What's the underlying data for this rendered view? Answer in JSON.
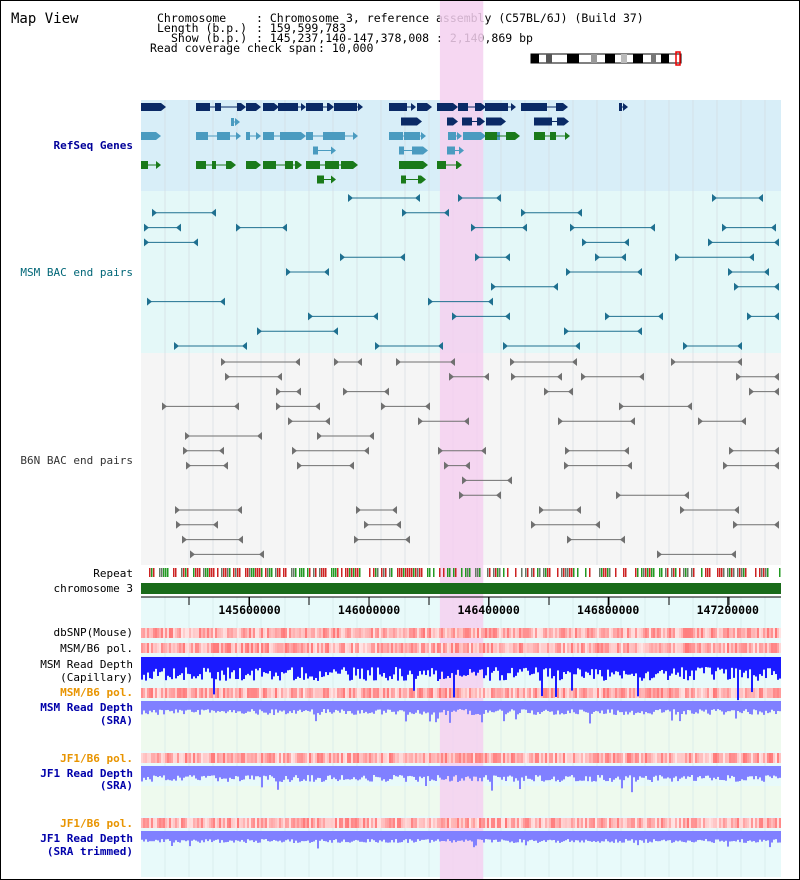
{
  "page": {
    "title": "Map View"
  },
  "header": {
    "chromosome_label": "Chromosome",
    "chromosome_value": ": Chromosome 3, reference assembly (C57BL/6J) (Build 37)",
    "length_label": "Length (b.p.)",
    "length_value": ": 159,599,783",
    "show_label": "Show (b.p.)",
    "show_value": ": 145,237,140-147,378,008 : 2,140,869 bp",
    "coverage_label": "Read coverage check span",
    "coverage_value": ": 10,000"
  },
  "tracks": {
    "refseq": "RefSeq Genes",
    "msm_bac": "MSM BAC end pairs",
    "b6n_bac": "B6N BAC end pairs",
    "repeat": "Repeat",
    "chromosome": "chromosome 3",
    "dbsnp": "dbSNP(Mouse)",
    "msm_b6_pol_1": "MSM/B6 pol.",
    "msm_depth_cap_1": "MSM Read Depth",
    "msm_depth_cap_2": "(Capillary)",
    "msm_b6_pol_2": "MSM/B6 pol.",
    "msm_depth_sra_1": "MSM Read Depth",
    "msm_depth_sra_2": "(SRA)",
    "jf1_pol_1": "JF1/B6 pol.",
    "jf1_depth_sra_1": "JF1 Read Depth",
    "jf1_depth_sra_2": "(SRA)",
    "jf1_pol_2": "JF1/B6 pol.",
    "jf1_depth_trim_1": "JF1 Read Depth",
    "jf1_depth_trim_2": "(SRA trimmed)"
  },
  "axis": {
    "range_bp": [
      145237140,
      147378008
    ],
    "ticks": [
      {
        "value": 145600000,
        "label": "145600000"
      },
      {
        "value": 146000000,
        "label": "146000000"
      },
      {
        "value": 146400000,
        "label": "146400000"
      },
      {
        "value": 146800000,
        "label": "146800000"
      },
      {
        "value": 147200000,
        "label": "147200000"
      }
    ]
  },
  "highlight_range_bp": [
    146237000,
    146382000
  ],
  "colors": {
    "refseq_bg": "#d8eef8",
    "msm_bg": "#e4f8f8",
    "b6n_bg": "#f5f5f5",
    "highlight": "#f4d0f0",
    "gene_dark": "#0a2a66",
    "gene_light": "#4a9bc0",
    "gene_green": "#1a7a1a",
    "msm_pair": "#1f7090",
    "b6n_pair": "#707070",
    "chromosome": "#1a6b1a",
    "depth_cap": "#1a1aff",
    "depth_sra": "#8080ff",
    "pol": "#ff4444"
  }
}
